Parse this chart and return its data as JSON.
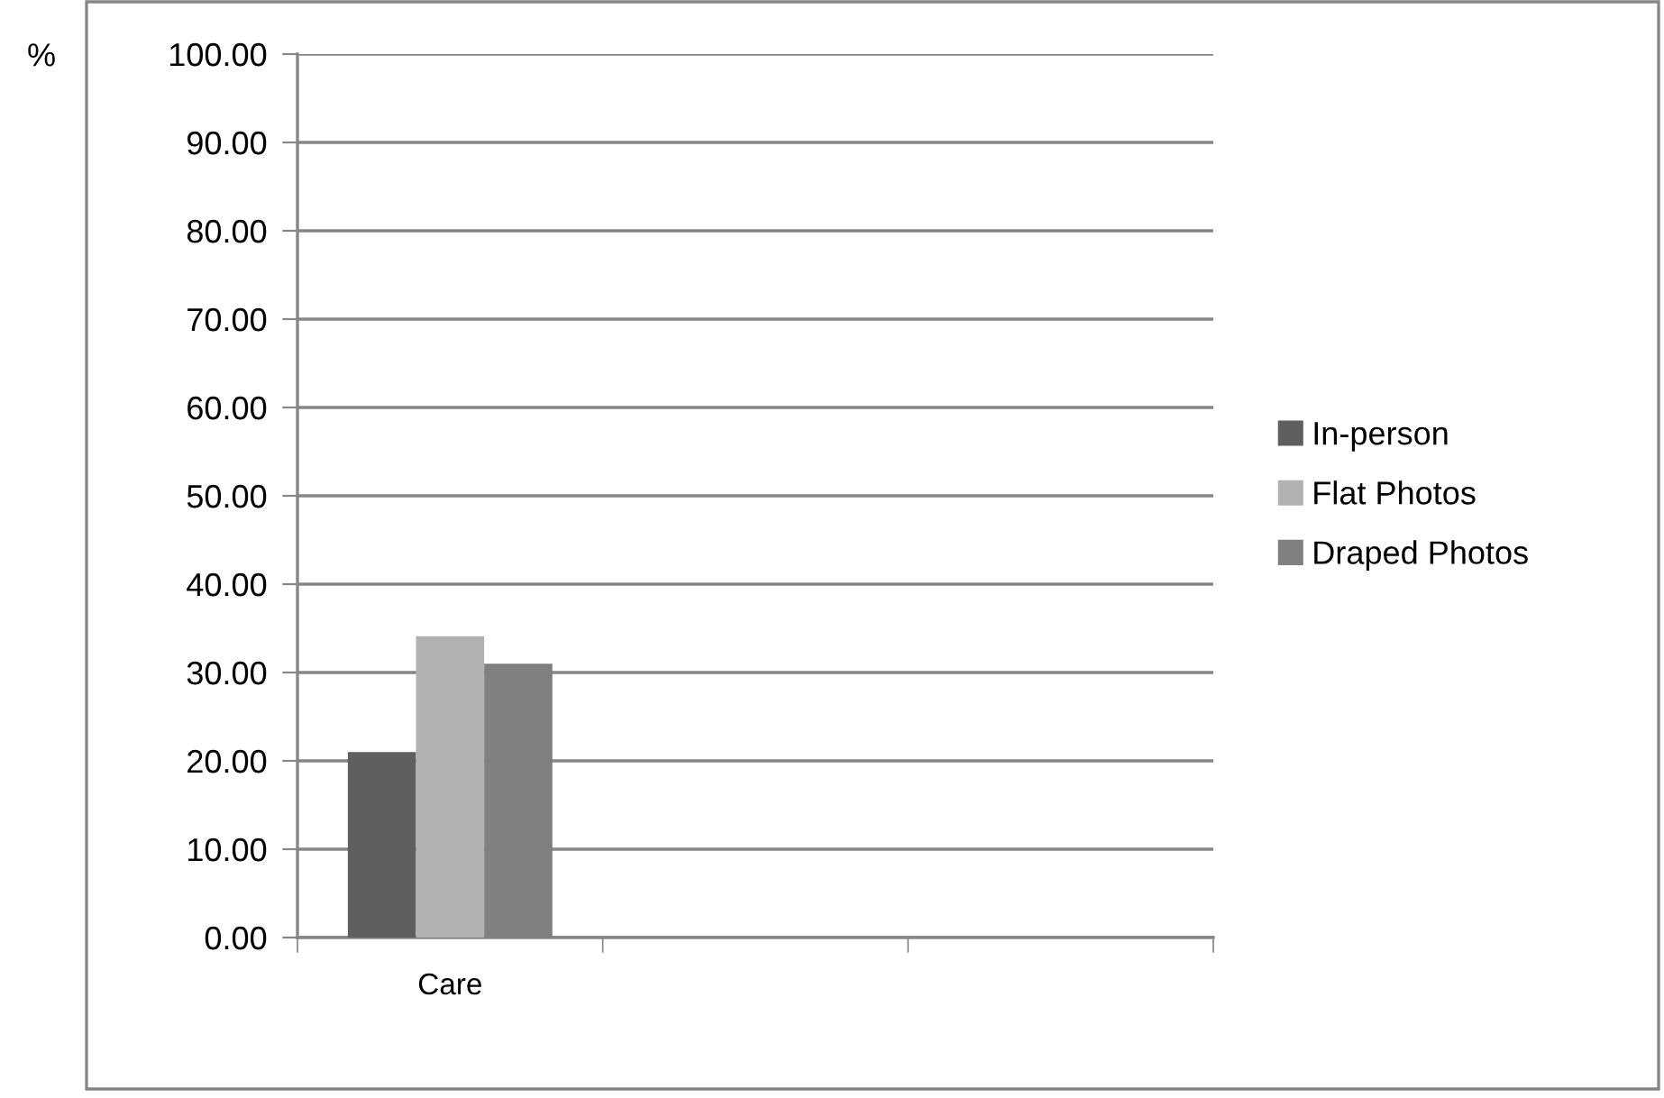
{
  "chart_data": {
    "type": "bar",
    "ylabel": "%",
    "categories": [
      "Care",
      null,
      null
    ],
    "series": [
      {
        "name": "In-person",
        "color": "#5f5f5f",
        "values": [
          21.0,
          null,
          null
        ]
      },
      {
        "name": "Flat Photos",
        "color": "#b2b2b2",
        "values": [
          34.1,
          null,
          null
        ]
      },
      {
        "name": "Draped Photos",
        "color": "#808080",
        "values": [
          31.0,
          null,
          null
        ]
      }
    ],
    "ylim": [
      0,
      100
    ],
    "yticks": [
      {
        "value": 0,
        "label": "0.00"
      },
      {
        "value": 10,
        "label": "10.00"
      },
      {
        "value": 20,
        "label": "20.00"
      },
      {
        "value": 30,
        "label": "30.00"
      },
      {
        "value": 40,
        "label": "40.00"
      },
      {
        "value": 50,
        "label": "50.00"
      },
      {
        "value": 60,
        "label": "60.00"
      },
      {
        "value": 70,
        "label": "70.00"
      },
      {
        "value": 80,
        "label": "80.00"
      },
      {
        "value": 90,
        "label": "90.00"
      },
      {
        "value": 100,
        "label": "100.00"
      }
    ],
    "grid": "y",
    "legend": "right"
  }
}
